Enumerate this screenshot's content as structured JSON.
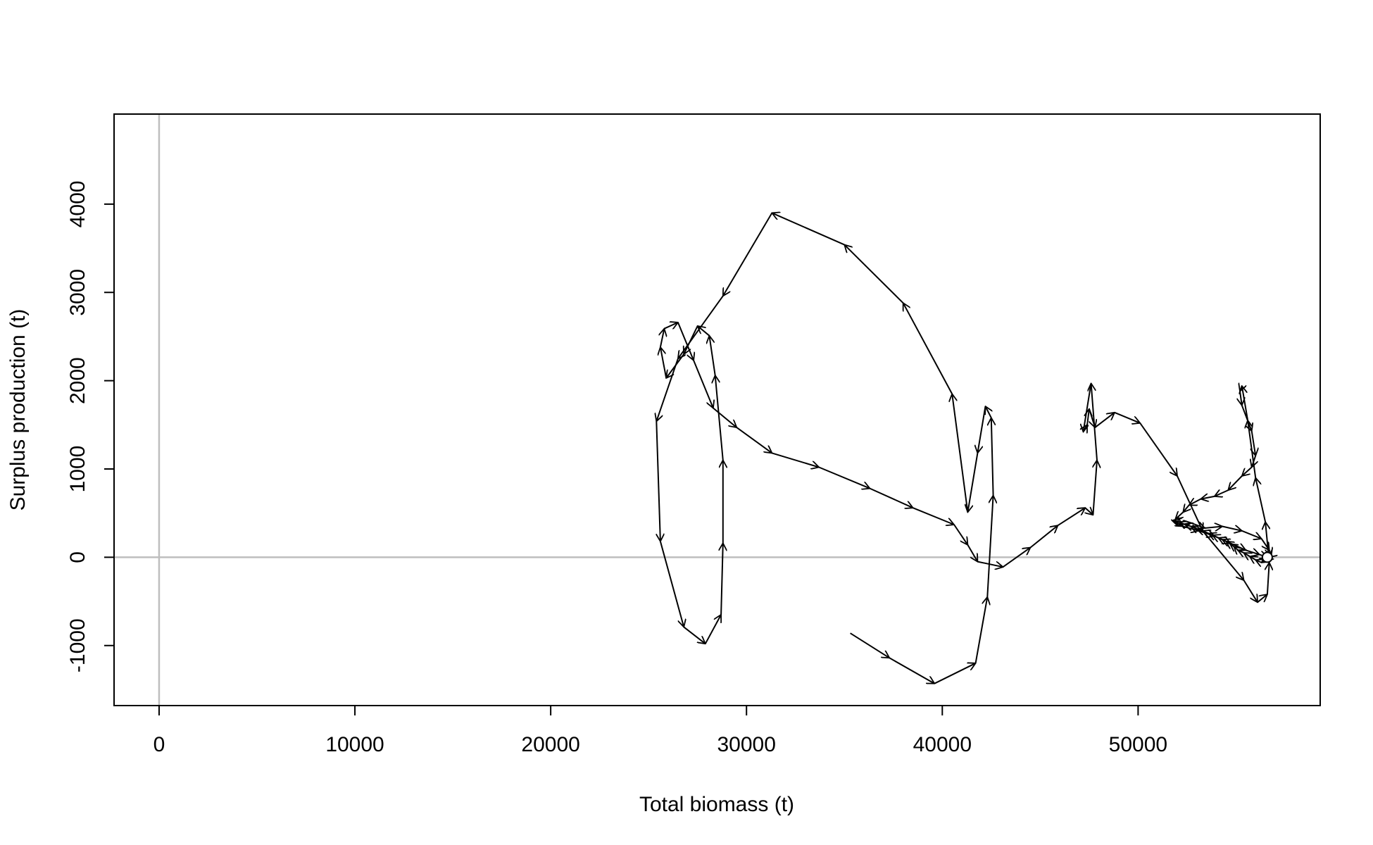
{
  "chart_data": {
    "type": "line",
    "title": "",
    "xlabel": "Total biomass (t)",
    "ylabel": "Surplus production (t)",
    "xlim": [
      -2300,
      59300
    ],
    "ylim": [
      -1680,
      5020
    ],
    "x_ticks": [
      0,
      10000,
      20000,
      30000,
      40000,
      50000
    ],
    "x_tick_labels": [
      "0",
      "10000",
      "20000",
      "30000",
      "40000",
      "50000"
    ],
    "y_ticks": [
      -1000,
      0,
      1000,
      2000,
      3000,
      4000
    ],
    "y_tick_labels": [
      "-1000",
      "0",
      "1000",
      "2000",
      "3000",
      "4000"
    ],
    "reference_lines": {
      "x": 0,
      "y": 0,
      "color": "#bebebe"
    },
    "grid": false,
    "legend": "none",
    "line_color": "#000000",
    "marker_end": "open-circle",
    "series": [
      {
        "x": [
          35300,
          37300,
          39600,
          41700,
          42300,
          42600,
          42500,
          42200,
          41800,
          41300,
          40500,
          38000,
          35000,
          31300,
          28800,
          26500,
          25400,
          25600,
          26800,
          27900,
          28700,
          28800,
          28800,
          28400,
          28100,
          27500,
          26800,
          25900,
          25600,
          25800,
          26500,
          27300,
          28300,
          29500,
          31300,
          33700,
          36300,
          38500,
          40600,
          41300,
          41800,
          43100,
          44500,
          45900,
          47300,
          47700,
          47900,
          47600,
          47200,
          47400,
          47500,
          47800,
          48800,
          50100,
          52000,
          53300,
          55400,
          56100,
          56600,
          56700,
          56500,
          56000,
          55600,
          55300,
          55200,
          55300,
          55800,
          56000,
          55800,
          55300,
          54600,
          53900,
          53200,
          52600,
          52300,
          51900,
          52000,
          52700,
          53400,
          54300,
          55300,
          56300,
          56700,
          56800,
          56700,
          56500,
          56300,
          56000,
          55700,
          55400,
          55100,
          54900,
          54700,
          54500,
          54300,
          54100,
          53800,
          53600,
          53300,
          53000,
          52700,
          52400,
          52100,
          51800,
          52300,
          53100,
          53900,
          54700,
          55500,
          56200,
          56600
        ],
        "y": [
          -860,
          -1140,
          -1430,
          -1200,
          -450,
          700,
          1580,
          1710,
          1180,
          510,
          1850,
          2880,
          3540,
          3900,
          2960,
          2250,
          1540,
          180,
          -790,
          -980,
          -650,
          160,
          1100,
          2060,
          2510,
          2620,
          2300,
          2030,
          2380,
          2590,
          2660,
          2230,
          1690,
          1470,
          1180,
          1020,
          780,
          560,
          370,
          140,
          -50,
          -110,
          110,
          360,
          560,
          480,
          1100,
          1970,
          1420,
          1500,
          1680,
          1470,
          1640,
          1520,
          920,
          300,
          -260,
          -510,
          -420,
          -60,
          400,
          900,
          1550,
          1940,
          1880,
          1720,
          1430,
          1150,
          1020,
          920,
          760,
          690,
          660,
          590,
          510,
          430,
          360,
          390,
          330,
          350,
          300,
          210,
          80,
          20,
          0,
          -30,
          -60,
          -30,
          10,
          50,
          80,
          120,
          150,
          180,
          200,
          220,
          250,
          270,
          300,
          320,
          350,
          370,
          400,
          420,
          350,
          300,
          240,
          160,
          80,
          30,
          0
        ]
      }
    ]
  }
}
